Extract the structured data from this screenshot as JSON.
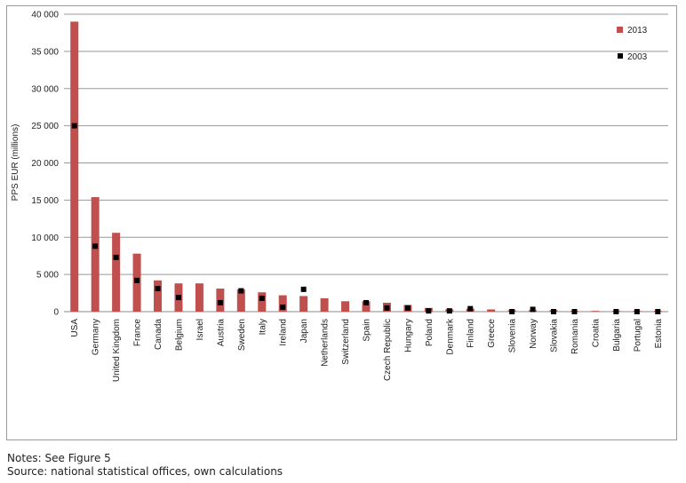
{
  "chart_data": {
    "type": "bar",
    "title": "",
    "xlabel": "",
    "ylabel": "PPS EUR (millions)",
    "ylim": [
      0,
      40000
    ],
    "yticks": [
      0,
      5000,
      10000,
      15000,
      20000,
      25000,
      30000,
      35000,
      40000
    ],
    "ytick_labels": [
      "0",
      "5 000",
      "10 000",
      "15 000",
      "20 000",
      "25 000",
      "30 000",
      "35 000",
      "40 000"
    ],
    "grid": true,
    "legend_position": "top-right",
    "categories": [
      "USA",
      "Germany",
      "United Kingdom",
      "France",
      "Canada",
      "Belgium",
      "Israel",
      "Austria",
      "Sweden",
      "Italy",
      "Ireland",
      "Japan",
      "Netherlands",
      "Switzerland",
      "Spain",
      "Czech Republic",
      "Hungary",
      "Poland",
      "Denmark",
      "Finland",
      "Greece",
      "Slovenia",
      "Norway",
      "Slovakia",
      "Romania",
      "Croatia",
      "Bulgaria",
      "Portugal",
      "Estonia"
    ],
    "series": [
      {
        "name": "2013",
        "kind": "bar",
        "color": "#c0504d",
        "values": [
          39000,
          15400,
          10600,
          7800,
          4200,
          3800,
          3800,
          3100,
          3000,
          2600,
          2200,
          2100,
          1800,
          1400,
          1400,
          1200,
          900,
          500,
          300,
          400,
          300,
          200,
          200,
          200,
          100,
          100,
          100,
          100,
          100
        ]
      },
      {
        "name": "2003",
        "kind": "marker",
        "color": "#000000",
        "values": [
          25000,
          8800,
          7300,
          4200,
          3100,
          1900,
          null,
          1200,
          2800,
          1800,
          600,
          3000,
          null,
          null,
          1200,
          500,
          500,
          100,
          100,
          400,
          null,
          0,
          300,
          0,
          0,
          null,
          0,
          0,
          0
        ]
      }
    ]
  },
  "notes": {
    "line1": "Notes: See Figure 5",
    "line2": "Source: national statistical offices, own calculations"
  }
}
